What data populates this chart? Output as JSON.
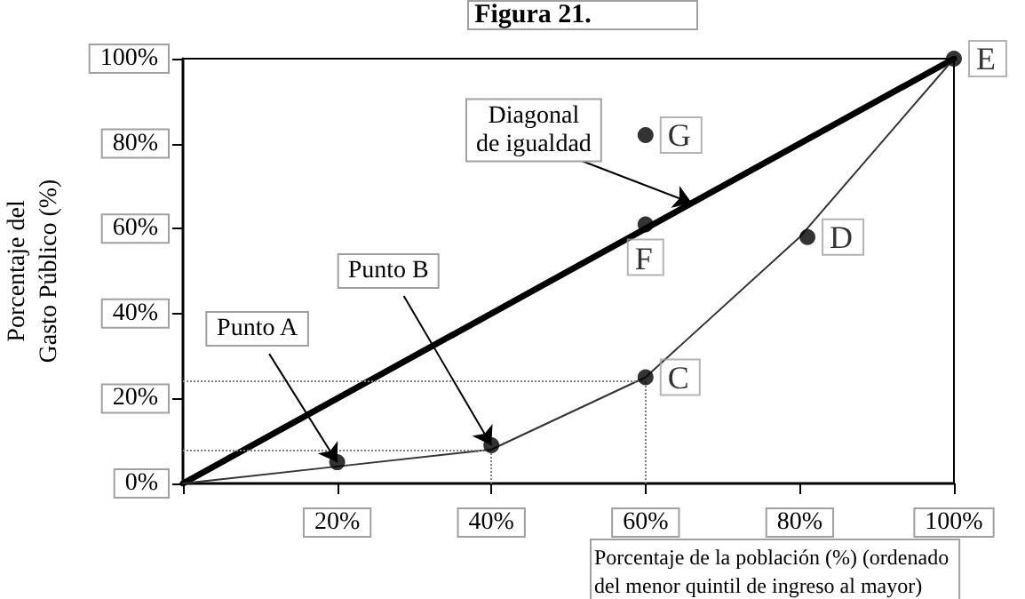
{
  "chart_data": {
    "type": "line",
    "title": "Figura 21.",
    "xlabel": "Porcentaje de la población (%) (ordenado\ndel menor quintil de ingreso al mayor)",
    "ylabel": "Porcentaje del\nGasto Público (%)",
    "xlim": [
      0,
      100
    ],
    "ylim": [
      0,
      100
    ],
    "xticks": [
      {
        "value": 0,
        "label": null
      },
      {
        "value": 20,
        "label": "20%"
      },
      {
        "value": 40,
        "label": "40%"
      },
      {
        "value": 60,
        "label": "60%"
      },
      {
        "value": 80,
        "label": "80%"
      },
      {
        "value": 100,
        "label": "100%"
      }
    ],
    "yticks": [
      {
        "value": 0,
        "label": "0%"
      },
      {
        "value": 20,
        "label": "20%"
      },
      {
        "value": 40,
        "label": "40%"
      },
      {
        "value": 60,
        "label": "60%"
      },
      {
        "value": 80,
        "label": "80%"
      },
      {
        "value": 100,
        "label": "100%"
      }
    ],
    "series": [
      {
        "color": "#000000",
        "x": [
          0,
          100
        ],
        "values": [
          0,
          100
        ],
        "marker": "none",
        "line_style": "solid"
      },
      {
        "color": "#333333",
        "x": [
          0,
          20,
          40,
          60,
          80,
          100
        ],
        "values": [
          0,
          4,
          8,
          25,
          58,
          100
        ],
        "marker": "none",
        "line_style": "solid"
      },
      {
        "type": "scatter",
        "color": "#000000",
        "x": [
          20,
          40,
          60,
          81,
          100,
          60,
          60
        ],
        "values": [
          5,
          9,
          25,
          58,
          100,
          61,
          82
        ],
        "marker": "circle",
        "value_labels": [
          null,
          null,
          "C",
          "D",
          "E",
          "F",
          "G"
        ]
      }
    ],
    "ref_lines": [
      {
        "axis": "y",
        "value": 24,
        "color": "#808080",
        "line_style": "dotted"
      },
      {
        "axis": "x",
        "value": 60,
        "color": "#808080",
        "line_style": "dotted"
      },
      {
        "axis": "y",
        "value": 8,
        "color": "#808080",
        "line_style": "dotted"
      },
      {
        "axis": "x",
        "value": 40,
        "color": "#808080",
        "line_style": "dotted"
      }
    ],
    "annotations": [
      {
        "text": "Punto A",
        "x": 20,
        "y": 5
      },
      {
        "text": "Punto B",
        "x": 40,
        "y": 9
      },
      {
        "text": "Diagonal\nde igualdad",
        "x": 66,
        "y": 66
      }
    ],
    "grid": false
  }
}
